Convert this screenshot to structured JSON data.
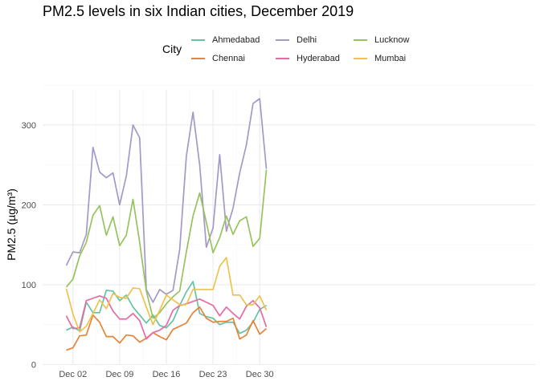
{
  "chart_data": {
    "type": "line",
    "title": "PM2.5 levels in six Indian cities, December 2019",
    "xlabel": "",
    "ylabel": "PM2.5 (µg/m³)",
    "legend_title": "City",
    "legend_position": "top",
    "grid": true,
    "xlim": [
      "2019-11-30",
      "2019-12-31"
    ],
    "ylim": [
      0,
      350
    ],
    "x_ticks": [
      "2019-12-02",
      "2019-12-09",
      "2019-12-16",
      "2019-12-23",
      "2019-12-30"
    ],
    "x_tick_labels": [
      "Dec 02",
      "Dec 09",
      "Dec 16",
      "Dec 23",
      "Dec 30"
    ],
    "y_ticks": [
      0,
      100,
      200,
      300
    ],
    "y_tick_labels": [
      "0",
      "100",
      "200",
      "300"
    ],
    "x": [
      "2019-12-01",
      "2019-12-02",
      "2019-12-03",
      "2019-12-04",
      "2019-12-05",
      "2019-12-06",
      "2019-12-07",
      "2019-12-08",
      "2019-12-09",
      "2019-12-10",
      "2019-12-11",
      "2019-12-12",
      "2019-12-13",
      "2019-12-14",
      "2019-12-15",
      "2019-12-16",
      "2019-12-17",
      "2019-12-18",
      "2019-12-19",
      "2019-12-20",
      "2019-12-21",
      "2019-12-22",
      "2019-12-23",
      "2019-12-24",
      "2019-12-25",
      "2019-12-26",
      "2019-12-27",
      "2019-12-28",
      "2019-12-29",
      "2019-12-30",
      "2019-12-31"
    ],
    "series": [
      {
        "name": "Ahmedabad",
        "color": "#66c2a5",
        "values": [
          43,
          47,
          42,
          78,
          65,
          65,
          93,
          92,
          80,
          87,
          72,
          62,
          52,
          62,
          49,
          46,
          55,
          74,
          91,
          104,
          64,
          60,
          58,
          50,
          53,
          53,
          39,
          43,
          53,
          69,
          74
        ]
      },
      {
        "name": "Chennai",
        "color": "#e8833a",
        "values": [
          18,
          21,
          36,
          37,
          62,
          53,
          35,
          35,
          27,
          37,
          36,
          28,
          33,
          40,
          35,
          31,
          44,
          48,
          52,
          65,
          72,
          58,
          53,
          54,
          54,
          58,
          32,
          37,
          55,
          38,
          45
        ]
      },
      {
        "name": "Delhi",
        "color": "#a499c7",
        "values": [
          124,
          141,
          140,
          163,
          272,
          241,
          234,
          240,
          200,
          236,
          300,
          284,
          94,
          78,
          94,
          88,
          93,
          144,
          261,
          316,
          250,
          147,
          171,
          263,
          167,
          196,
          240,
          275,
          327,
          333,
          245
        ]
      },
      {
        "name": "Hyderabad",
        "color": "#e56ba3",
        "values": [
          61,
          45,
          46,
          80,
          83,
          86,
          83,
          67,
          57,
          57,
          64,
          55,
          32,
          40,
          43,
          49,
          68,
          74,
          76,
          79,
          82,
          78,
          74,
          61,
          72,
          64,
          57,
          73,
          80,
          71,
          47
        ]
      },
      {
        "name": "Lucknow",
        "color": "#97c35f",
        "values": [
          97,
          107,
          136,
          153,
          187,
          199,
          162,
          185,
          149,
          162,
          207,
          153,
          92,
          58,
          65,
          76,
          85,
          92,
          141,
          186,
          215,
          178,
          140,
          159,
          186,
          163,
          180,
          185,
          148,
          158,
          244
        ]
      },
      {
        "name": "Mumbai",
        "color": "#ecc34d",
        "values": [
          95,
          63,
          41,
          48,
          64,
          81,
          70,
          89,
          84,
          83,
          96,
          95,
          72,
          50,
          68,
          87,
          81,
          75,
          75,
          94,
          94,
          94,
          94,
          123,
          134,
          87,
          87,
          75,
          75,
          86,
          68
        ]
      }
    ]
  }
}
